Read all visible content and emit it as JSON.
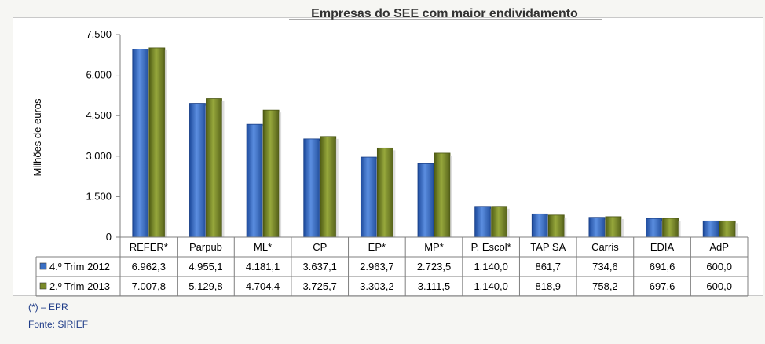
{
  "chart_data": {
    "type": "bar",
    "title": "Empresas do SEE com maior endividamento",
    "ylabel": "Milhões de euros",
    "xlabel": "",
    "ylim": [
      0,
      7500
    ],
    "yticks": [
      "7.500",
      "6.000",
      "4.500",
      "3.000",
      "1.500",
      "0"
    ],
    "ytick_values": [
      7500,
      6000,
      4500,
      3000,
      1500,
      0
    ],
    "grid": false,
    "legend": "data-table",
    "categories": [
      "REFER*",
      "Parpub",
      "ML*",
      "CP",
      "EP*",
      "MP*",
      "P. Escol*",
      "TAP  SA",
      "Carris",
      "EDIA",
      "AdP"
    ],
    "series": [
      {
        "name": "4.º Trim 2012",
        "color": "#3a6fc4",
        "values": [
          6962.3,
          4955.1,
          4181.1,
          3637.1,
          2963.7,
          2723.5,
          1140.0,
          861.7,
          734.6,
          691.6,
          600.0
        ],
        "labels": [
          "6.962,3",
          "4.955,1",
          "4.181,1",
          "3.637,1",
          "2.963,7",
          "2.723,5",
          "1.140,0",
          "861,7",
          "734,6",
          "691,6",
          "600,0"
        ]
      },
      {
        "name": "2.º Trim 2013",
        "color": "#7a8a2a",
        "values": [
          7007.8,
          5129.8,
          4704.4,
          3725.7,
          3303.2,
          3111.5,
          1140.0,
          818.9,
          758.2,
          697.6,
          600.0
        ],
        "labels": [
          "7.007,8",
          "5.129,8",
          "4.704,4",
          "3.725,7",
          "3.303,2",
          "3.111,5",
          "1.140,0",
          "818,9",
          "758,2",
          "697,6",
          "600,0"
        ]
      }
    ]
  },
  "notes": {
    "epr": "(*) – EPR",
    "source": "Fonte: SIRIEF"
  }
}
